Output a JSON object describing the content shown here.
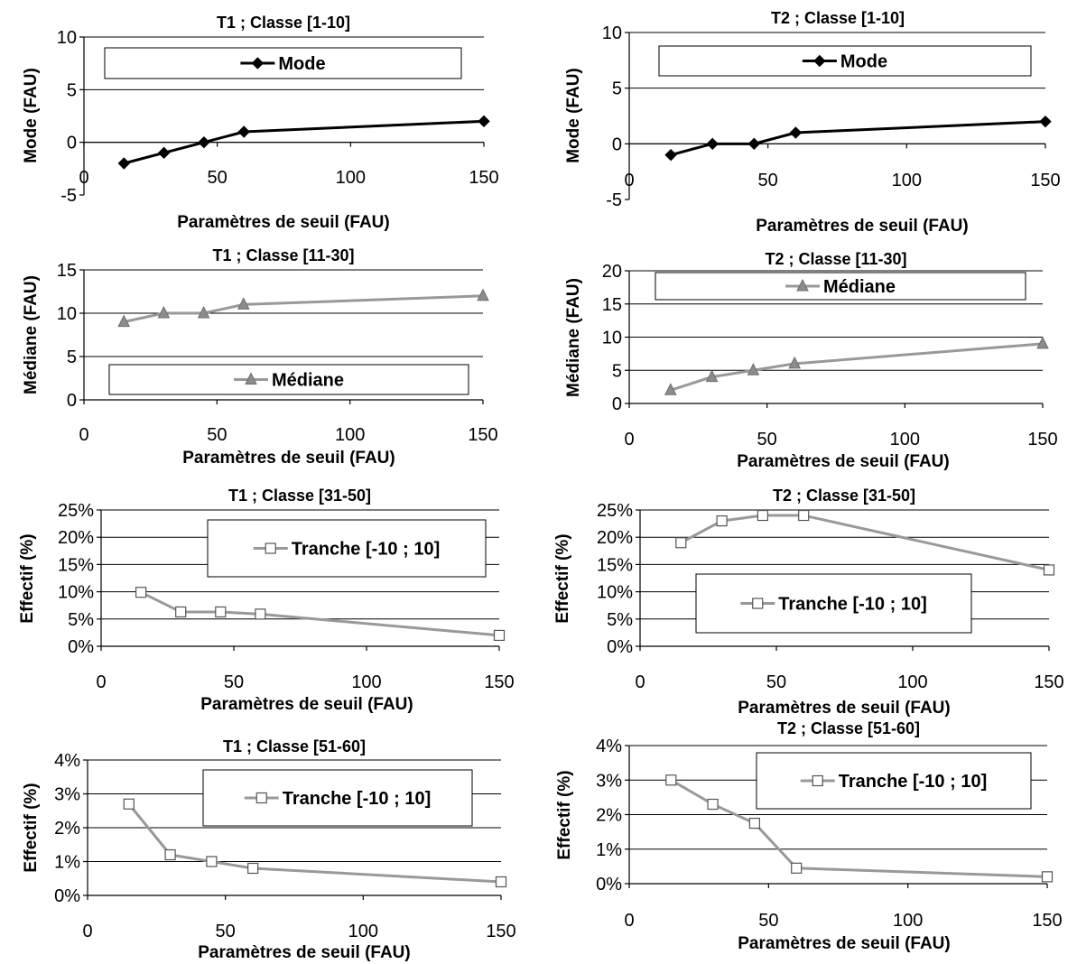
{
  "chart_data": [
    {
      "type": "line",
      "title": "T1 ; Classe [1-10]",
      "xlabel": "Paramètres de seuil (FAU)",
      "ylabel": "Mode (FAU)",
      "xlim": [
        0,
        150
      ],
      "ylim": [
        -5,
        10
      ],
      "xticks": [
        "0",
        "50",
        "100",
        "150"
      ],
      "yticks": [
        "-5",
        "0",
        "5",
        "10"
      ],
      "x": [
        15,
        30,
        45,
        60,
        150
      ],
      "series": [
        {
          "name": "Mode",
          "values": [
            -2,
            -1,
            0,
            1,
            2
          ],
          "color": "#000000",
          "marker": "diamond"
        }
      ],
      "legend": "top",
      "grid": true
    },
    {
      "type": "line",
      "title": "T2 ; Classe [1-10]",
      "xlabel": "Paramètres de seuil (FAU)",
      "ylabel": "Mode (FAU)",
      "xlim": [
        0,
        150
      ],
      "ylim": [
        -5,
        10
      ],
      "xticks": [
        "0",
        "50",
        "100",
        "150"
      ],
      "yticks": [
        "-5",
        "0",
        "5",
        "10"
      ],
      "x": [
        15,
        30,
        45,
        60,
        150
      ],
      "series": [
        {
          "name": "Mode",
          "values": [
            -1,
            0,
            0,
            1,
            2
          ],
          "color": "#000000",
          "marker": "diamond"
        }
      ],
      "legend": "top",
      "grid": true
    },
    {
      "type": "line",
      "title": "T1 ; Classe [11-30]",
      "xlabel": "Paramètres de seuil (FAU)",
      "ylabel": "Médiane (FAU)",
      "xlim": [
        0,
        150
      ],
      "ylim": [
        0,
        15
      ],
      "xticks": [
        "0",
        "50",
        "100",
        "150"
      ],
      "yticks": [
        "0",
        "5",
        "10",
        "15"
      ],
      "x": [
        15,
        30,
        45,
        60,
        150
      ],
      "series": [
        {
          "name": "Médiane",
          "values": [
            9,
            10,
            10,
            11,
            12
          ],
          "color": "#999999",
          "marker": "triangle"
        }
      ],
      "legend": "bottom",
      "grid": true
    },
    {
      "type": "line",
      "title": "T2 ; Classe [11-30]",
      "xlabel": "Paramètres de seuil (FAU)",
      "ylabel": "Médiane (FAU)",
      "xlim": [
        0,
        150
      ],
      "ylim": [
        0,
        20
      ],
      "xticks": [
        "0",
        "50",
        "100",
        "150"
      ],
      "yticks": [
        "0",
        "5",
        "10",
        "15",
        "20"
      ],
      "x": [
        15,
        30,
        45,
        60,
        150
      ],
      "series": [
        {
          "name": "Médiane",
          "values": [
            2,
            4,
            5,
            6,
            9
          ],
          "color": "#999999",
          "marker": "triangle"
        }
      ],
      "legend": "top",
      "grid": true
    },
    {
      "type": "line",
      "title": "T1 ; Classe [31-50]",
      "xlabel": "Paramètres de seuil (FAU)",
      "ylabel": "Effectif (%)",
      "xlim": [
        0,
        150
      ],
      "ylim": [
        0,
        25
      ],
      "xticks": [
        "0",
        "50",
        "100",
        "150"
      ],
      "yticks": [
        "0%",
        "5%",
        "10%",
        "15%",
        "20%",
        "25%"
      ],
      "x": [
        15,
        30,
        45,
        60,
        150
      ],
      "series": [
        {
          "name": "Tranche [-10 ; 10]",
          "values": [
            9.9,
            6.3,
            6.3,
            5.9,
            2.0
          ],
          "color": "#999999",
          "marker": "square"
        }
      ],
      "legend": "top-right",
      "grid": true
    },
    {
      "type": "line",
      "title": "T2 ; Classe [31-50]",
      "xlabel": "Paramètres de seuil (FAU)",
      "ylabel": "Effectif (%)",
      "xlim": [
        0,
        150
      ],
      "ylim": [
        0,
        25
      ],
      "xticks": [
        "0",
        "50",
        "100",
        "150"
      ],
      "yticks": [
        "0%",
        "5%",
        "10%",
        "15%",
        "20%",
        "25%"
      ],
      "x": [
        15,
        30,
        45,
        60,
        150
      ],
      "series": [
        {
          "name": "Tranche [-10 ; 10]",
          "values": [
            19,
            23,
            24,
            24,
            14
          ],
          "color": "#999999",
          "marker": "square"
        }
      ],
      "legend": "center",
      "grid": true
    },
    {
      "type": "line",
      "title": "T1 ; Classe [51-60]",
      "xlabel": "Paramètres de seuil (FAU)",
      "ylabel": "Effectif (%)",
      "xlim": [
        0,
        150
      ],
      "ylim": [
        0,
        4
      ],
      "xticks": [
        "0",
        "50",
        "100",
        "150"
      ],
      "yticks": [
        "0%",
        "1%",
        "2%",
        "3%",
        "4%"
      ],
      "x": [
        15,
        30,
        45,
        60,
        150
      ],
      "series": [
        {
          "name": "Tranche [-10 ; 10]",
          "values": [
            2.7,
            1.2,
            1.0,
            0.8,
            0.4
          ],
          "color": "#999999",
          "marker": "square"
        }
      ],
      "legend": "top-right",
      "grid": true
    },
    {
      "type": "line",
      "title": "T2 ; Classe [51-60]",
      "xlabel": "Paramètres de seuil (FAU)",
      "ylabel": "Effectif (%)",
      "xlim": [
        0,
        150
      ],
      "ylim": [
        0,
        4
      ],
      "xticks": [
        "0",
        "50",
        "100",
        "150"
      ],
      "yticks": [
        "0%",
        "1%",
        "2%",
        "3%",
        "4%"
      ],
      "x": [
        15,
        30,
        45,
        60,
        150
      ],
      "series": [
        {
          "name": "Tranche [-10 ; 10]",
          "values": [
            3.0,
            2.3,
            1.75,
            0.45,
            0.2
          ],
          "color": "#999999",
          "marker": "square"
        }
      ],
      "legend": "top-right",
      "grid": true
    }
  ]
}
